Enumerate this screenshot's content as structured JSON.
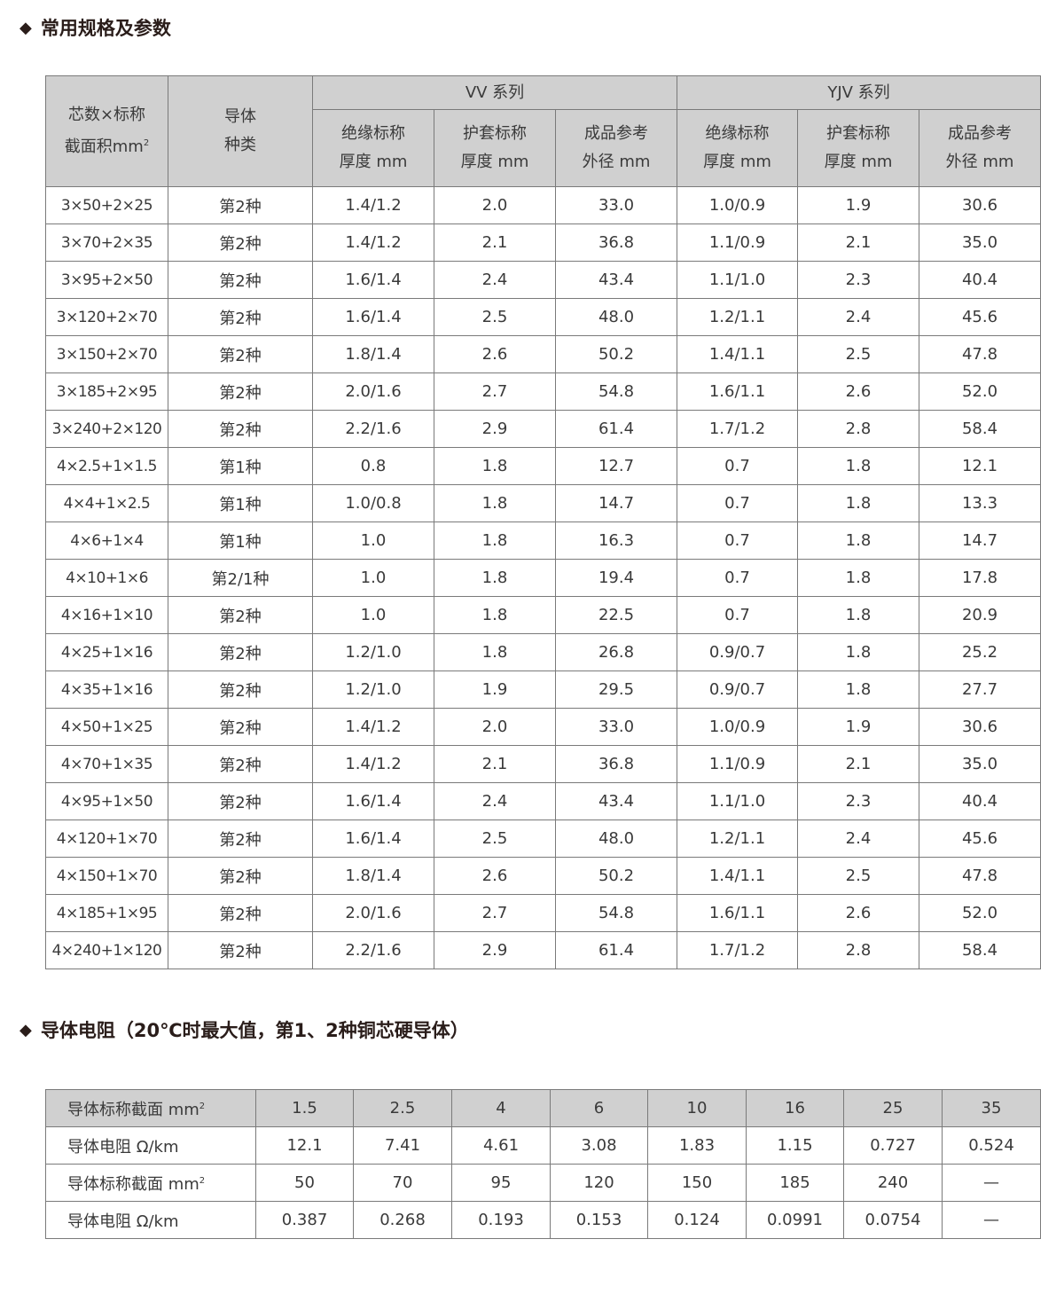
{
  "section1": {
    "title": "常用规格及参数"
  },
  "spec_table": {
    "header": {
      "col_spec_line1": "芯数×标称",
      "col_spec_line2": "截面积mm",
      "col_spec_sup": "2",
      "col_type_line1": "导体",
      "col_type_line2": "种类",
      "group_vv": "VV 系列",
      "group_yjv": "YJV 系列",
      "sub": [
        {
          "l1": "绝缘标称",
          "l2": "厚度 mm"
        },
        {
          "l1": "护套标称",
          "l2": "厚度 mm"
        },
        {
          "l1": "成品参考",
          "l2": "外径 mm"
        },
        {
          "l1": "绝缘标称",
          "l2": "厚度 mm"
        },
        {
          "l1": "护套标称",
          "l2": "厚度 mm"
        },
        {
          "l1": "成品参考",
          "l2": "外径 mm"
        }
      ]
    },
    "rows": [
      [
        "3×50+2×25",
        "第2种",
        "1.4/1.2",
        "2.0",
        "33.0",
        "1.0/0.9",
        "1.9",
        "30.6"
      ],
      [
        "3×70+2×35",
        "第2种",
        "1.4/1.2",
        "2.1",
        "36.8",
        "1.1/0.9",
        "2.1",
        "35.0"
      ],
      [
        "3×95+2×50",
        "第2种",
        "1.6/1.4",
        "2.4",
        "43.4",
        "1.1/1.0",
        "2.3",
        "40.4"
      ],
      [
        "3×120+2×70",
        "第2种",
        "1.6/1.4",
        "2.5",
        "48.0",
        "1.2/1.1",
        "2.4",
        "45.6"
      ],
      [
        "3×150+2×70",
        "第2种",
        "1.8/1.4",
        "2.6",
        "50.2",
        "1.4/1.1",
        "2.5",
        "47.8"
      ],
      [
        "3×185+2×95",
        "第2种",
        "2.0/1.6",
        "2.7",
        "54.8",
        "1.6/1.1",
        "2.6",
        "52.0"
      ],
      [
        "3×240+2×120",
        "第2种",
        "2.2/1.6",
        "2.9",
        "61.4",
        "1.7/1.2",
        "2.8",
        "58.4"
      ],
      [
        "4×2.5+1×1.5",
        "第1种",
        "0.8",
        "1.8",
        "12.7",
        "0.7",
        "1.8",
        "12.1"
      ],
      [
        "4×4+1×2.5",
        "第1种",
        "1.0/0.8",
        "1.8",
        "14.7",
        "0.7",
        "1.8",
        "13.3"
      ],
      [
        "4×6+1×4",
        "第1种",
        "1.0",
        "1.8",
        "16.3",
        "0.7",
        "1.8",
        "14.7"
      ],
      [
        "4×10+1×6",
        "第2/1种",
        "1.0",
        "1.8",
        "19.4",
        "0.7",
        "1.8",
        "17.8"
      ],
      [
        "4×16+1×10",
        "第2种",
        "1.0",
        "1.8",
        "22.5",
        "0.7",
        "1.8",
        "20.9"
      ],
      [
        "4×25+1×16",
        "第2种",
        "1.2/1.0",
        "1.8",
        "26.8",
        "0.9/0.7",
        "1.8",
        "25.2"
      ],
      [
        "4×35+1×16",
        "第2种",
        "1.2/1.0",
        "1.9",
        "29.5",
        "0.9/0.7",
        "1.8",
        "27.7"
      ],
      [
        "4×50+1×25",
        "第2种",
        "1.4/1.2",
        "2.0",
        "33.0",
        "1.0/0.9",
        "1.9",
        "30.6"
      ],
      [
        "4×70+1×35",
        "第2种",
        "1.4/1.2",
        "2.1",
        "36.8",
        "1.1/0.9",
        "2.1",
        "35.0"
      ],
      [
        "4×95+1×50",
        "第2种",
        "1.6/1.4",
        "2.4",
        "43.4",
        "1.1/1.0",
        "2.3",
        "40.4"
      ],
      [
        "4×120+1×70",
        "第2种",
        "1.6/1.4",
        "2.5",
        "48.0",
        "1.2/1.1",
        "2.4",
        "45.6"
      ],
      [
        "4×150+1×70",
        "第2种",
        "1.8/1.4",
        "2.6",
        "50.2",
        "1.4/1.1",
        "2.5",
        "47.8"
      ],
      [
        "4×185+1×95",
        "第2种",
        "2.0/1.6",
        "2.7",
        "54.8",
        "1.6/1.1",
        "2.6",
        "52.0"
      ],
      [
        "4×240+1×120",
        "第2种",
        "2.2/1.6",
        "2.9",
        "61.4",
        "1.7/1.2",
        "2.8",
        "58.4"
      ]
    ]
  },
  "section2": {
    "title": "导体电阻（20℃时最大值，第1、2种铜芯硬导体）"
  },
  "resistance_table": {
    "rows": [
      {
        "label": "导体标称截面 mm",
        "sup": "2",
        "gray": true,
        "values": [
          "1.5",
          "2.5",
          "4",
          "6",
          "10",
          "16",
          "25",
          "35"
        ]
      },
      {
        "label": "导体电阻 Ω/km",
        "sup": "",
        "gray": false,
        "values": [
          "12.1",
          "7.41",
          "4.61",
          "3.08",
          "1.83",
          "1.15",
          "0.727",
          "0.524"
        ]
      },
      {
        "label": "导体标称截面 mm",
        "sup": "2",
        "gray": false,
        "values": [
          "50",
          "70",
          "95",
          "120",
          "150",
          "185",
          "240",
          "—"
        ]
      },
      {
        "label": "导体电阻 Ω/km",
        "sup": "",
        "gray": false,
        "values": [
          "0.387",
          "0.268",
          "0.193",
          "0.153",
          "0.124",
          "0.0991",
          "0.0754",
          "—"
        ]
      }
    ]
  },
  "colors": {
    "header_bg": "#d0d0d0",
    "border": "#7a7a7a",
    "heading": "#2a1d1a"
  }
}
